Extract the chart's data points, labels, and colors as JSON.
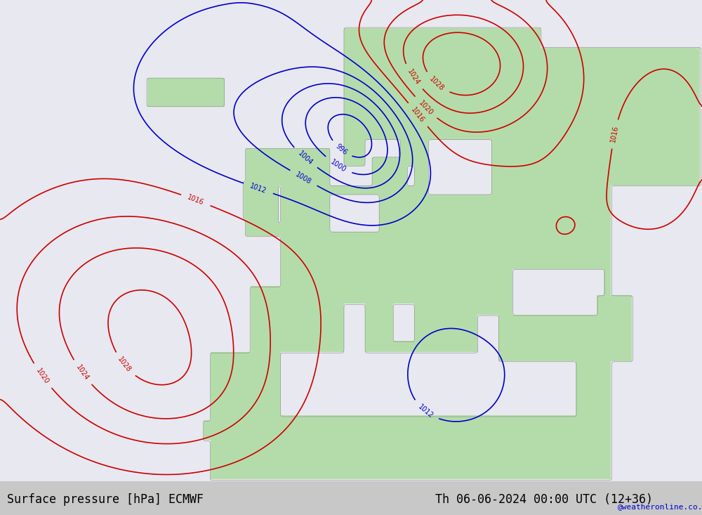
{
  "title_left": "Surface pressure [hPa] ECMWF",
  "title_right": "Th 06-06-2024 00:00 UTC (12+36)",
  "watermark": "@weatheronline.co.uk",
  "background_ocean": "#dde8f0",
  "background_land": "#c8e6c0",
  "background_sea_gray": "#e8e8e8",
  "contour_red_color": "#cc0000",
  "contour_blue_color": "#0000cc",
  "contour_black_color": "#000000",
  "title_color": "#000000",
  "watermark_color": "#0000cc",
  "fig_width": 10.0,
  "fig_height": 7.33,
  "dpi": 100,
  "bottom_bar_color": "#d0d0d0",
  "font_family": "monospace"
}
